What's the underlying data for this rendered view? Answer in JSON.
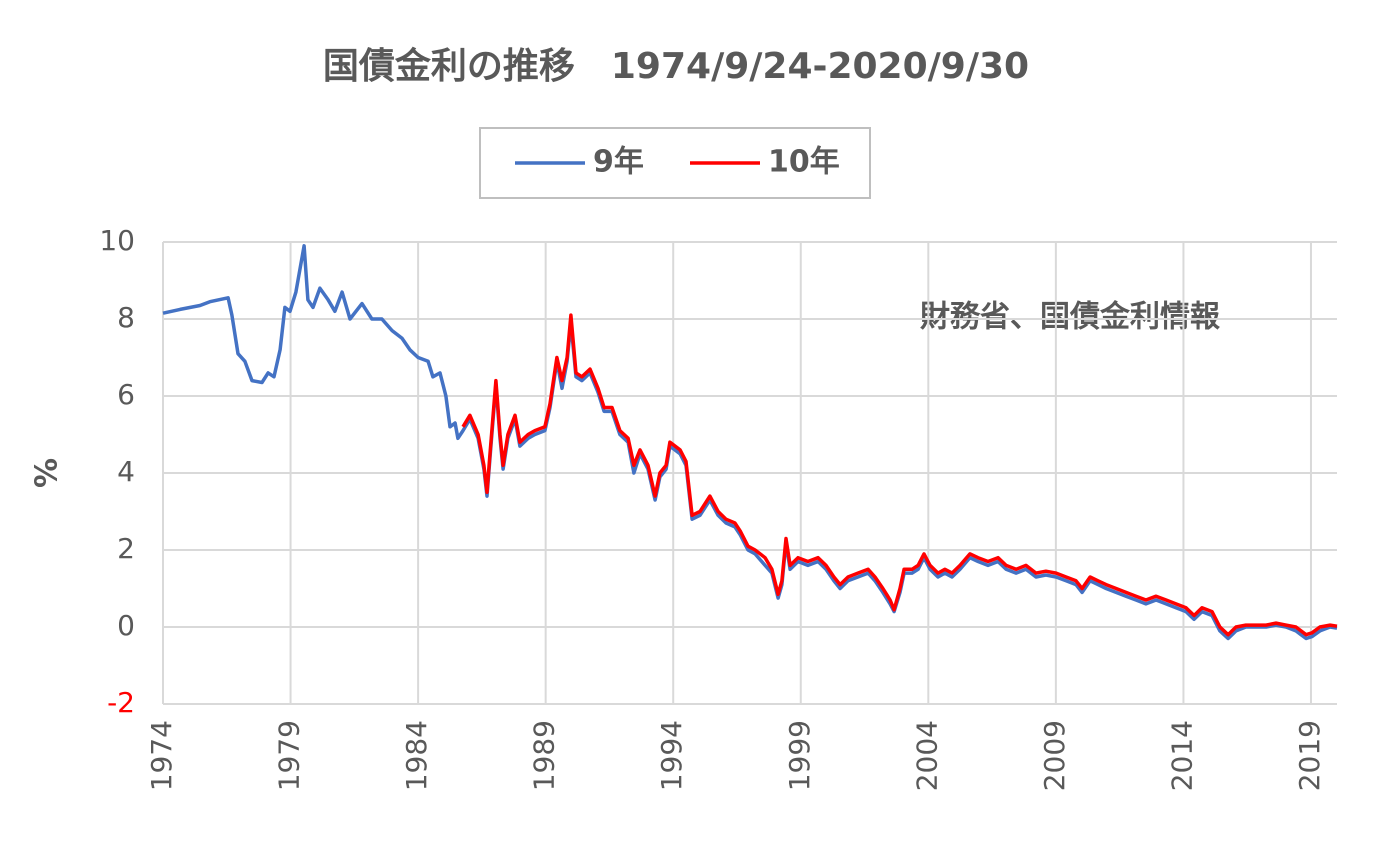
{
  "chart_data": {
    "type": "line",
    "title": "国債金利の推移　1974/9/24-2020/9/30",
    "ylabel": "%",
    "annotation": "財務省、国債金利情報",
    "xlim": [
      1974.73,
      2020.75
    ],
    "xticks": [
      {
        "value": 1974.73,
        "label": "1974"
      },
      {
        "value": 1979.73,
        "label": "1979"
      },
      {
        "value": 1984.73,
        "label": "1984"
      },
      {
        "value": 1989.73,
        "label": "1989"
      },
      {
        "value": 1994.73,
        "label": "1994"
      },
      {
        "value": 1999.73,
        "label": "1999"
      },
      {
        "value": 2004.73,
        "label": "2004"
      },
      {
        "value": 2009.73,
        "label": "2009"
      },
      {
        "value": 2014.73,
        "label": "2014"
      },
      {
        "value": 2019.73,
        "label": "2019"
      }
    ],
    "ylim": [
      -2,
      10
    ],
    "yticks": [
      -2,
      0,
      2,
      4,
      6,
      8,
      10
    ],
    "negative_tick_color": "#ff0000",
    "grid": true,
    "legend": "top",
    "x": [
      1974.73,
      1975.4,
      1976.18,
      1976.57,
      1977.28,
      1977.43,
      1977.67,
      1977.94,
      1978.22,
      1978.61,
      1978.85,
      1979.08,
      1979.32,
      1979.51,
      1979.71,
      1979.94,
      1980.26,
      1980.41,
      1980.61,
      1980.88,
      1981.2,
      1981.47,
      1981.75,
      1982.06,
      1982.53,
      1982.92,
      1983.31,
      1983.71,
      1984.1,
      1984.41,
      1984.73,
      1985.12,
      1985.31,
      1985.59,
      1985.82,
      1985.98,
      1986.18,
      1986.29,
      1986.49,
      1986.76,
      1987.08,
      1987.31,
      1987.43,
      1987.55,
      1987.78,
      1987.94,
      1988.06,
      1988.25,
      1988.53,
      1988.72,
      1989.04,
      1989.31,
      1989.7,
      1989.9,
      1990.17,
      1990.37,
      1990.57,
      1990.72,
      1990.92,
      1991.15,
      1991.47,
      1991.78,
      1992.02,
      1992.33,
      1992.64,
      1992.96,
      1993.19,
      1993.43,
      1993.74,
      1994.02,
      1994.21,
      1994.45,
      1994.6,
      1995.0,
      1995.23,
      1995.47,
      1995.78,
      1996.17,
      1996.49,
      1996.8,
      1997.15,
      1997.35,
      1997.66,
      1997.94,
      1998.33,
      1998.6,
      1998.84,
      1998.99,
      1999.15,
      1999.31,
      1999.62,
      2000.01,
      2000.41,
      2000.72,
      2001.03,
      2001.27,
      2001.58,
      2001.97,
      2002.37,
      2002.64,
      2002.95,
      2003.23,
      2003.39,
      2003.62,
      2003.78,
      2004.09,
      2004.33,
      2004.56,
      2004.8,
      2005.11,
      2005.38,
      2005.66,
      2005.97,
      2006.36,
      2006.68,
      2007.07,
      2007.46,
      2007.78,
      2008.17,
      2008.56,
      2008.95,
      2009.34,
      2009.74,
      2010.13,
      2010.52,
      2010.76,
      2011.07,
      2011.38,
      2011.7,
      2012.09,
      2012.48,
      2012.87,
      2013.26,
      2013.66,
      2014.05,
      2014.44,
      2014.83,
      2015.15,
      2015.46,
      2015.85,
      2016.16,
      2016.48,
      2016.79,
      2017.18,
      2017.58,
      2017.97,
      2018.36,
      2018.75,
      2019.14,
      2019.54,
      2019.77,
      2020.08,
      2020.48,
      2020.75
    ],
    "series": [
      {
        "name": "9年",
        "color": "#4472c4",
        "values": [
          8.15,
          8.25,
          8.35,
          8.45,
          8.55,
          8.1,
          7.1,
          6.9,
          6.4,
          6.35,
          6.6,
          6.5,
          7.2,
          8.3,
          8.2,
          8.7,
          9.9,
          8.5,
          8.3,
          8.8,
          8.5,
          8.2,
          8.7,
          8.0,
          8.4,
          8.0,
          8.0,
          7.7,
          7.5,
          7.2,
          7.0,
          6.9,
          6.5,
          6.6,
          6.0,
          5.2,
          5.3,
          4.9,
          5.1,
          5.4,
          4.9,
          4.1,
          3.4,
          4.4,
          6.3,
          4.9,
          4.1,
          4.9,
          5.4,
          4.7,
          4.9,
          5.0,
          5.1,
          5.7,
          6.9,
          6.2,
          6.9,
          7.9,
          6.5,
          6.4,
          6.6,
          6.1,
          5.6,
          5.6,
          5.0,
          4.8,
          4.0,
          4.5,
          4.1,
          3.3,
          3.9,
          4.1,
          4.7,
          4.5,
          4.2,
          2.8,
          2.9,
          3.3,
          2.9,
          2.7,
          2.6,
          2.4,
          2.0,
          1.9,
          1.6,
          1.4,
          0.75,
          1.1,
          2.2,
          1.5,
          1.7,
          1.6,
          1.7,
          1.5,
          1.2,
          1.0,
          1.2,
          1.3,
          1.4,
          1.2,
          0.9,
          0.6,
          0.4,
          0.9,
          1.4,
          1.4,
          1.5,
          1.8,
          1.5,
          1.3,
          1.4,
          1.3,
          1.5,
          1.8,
          1.7,
          1.6,
          1.7,
          1.5,
          1.4,
          1.5,
          1.3,
          1.35,
          1.3,
          1.2,
          1.1,
          0.9,
          1.2,
          1.1,
          1.0,
          0.9,
          0.8,
          0.7,
          0.6,
          0.7,
          0.6,
          0.5,
          0.4,
          0.2,
          0.4,
          0.3,
          -0.1,
          -0.3,
          -0.1,
          0.0,
          0.0,
          0.0,
          0.05,
          0.0,
          -0.1,
          -0.3,
          -0.25,
          -0.1,
          0.0,
          -0.03
        ]
      },
      {
        "name": "10年",
        "color": "#ff0000",
        "values": [
          null,
          null,
          null,
          null,
          null,
          null,
          null,
          null,
          null,
          null,
          null,
          null,
          null,
          null,
          null,
          null,
          null,
          null,
          null,
          null,
          null,
          null,
          null,
          null,
          null,
          null,
          null,
          null,
          null,
          null,
          null,
          null,
          null,
          null,
          null,
          null,
          null,
          null,
          5.2,
          5.5,
          5.0,
          4.2,
          3.5,
          4.5,
          6.4,
          5.0,
          4.2,
          5.0,
          5.5,
          4.8,
          5.0,
          5.1,
          5.2,
          5.8,
          7.0,
          6.4,
          7.0,
          8.1,
          6.6,
          6.5,
          6.7,
          6.2,
          5.7,
          5.7,
          5.1,
          4.9,
          4.2,
          4.6,
          4.2,
          3.4,
          4.0,
          4.2,
          4.8,
          4.6,
          4.3,
          2.9,
          3.0,
          3.4,
          3.0,
          2.8,
          2.7,
          2.5,
          2.1,
          2.0,
          1.8,
          1.5,
          0.85,
          1.2,
          2.3,
          1.6,
          1.8,
          1.7,
          1.8,
          1.6,
          1.3,
          1.1,
          1.3,
          1.4,
          1.5,
          1.3,
          1.0,
          0.7,
          0.45,
          1.0,
          1.5,
          1.5,
          1.6,
          1.9,
          1.6,
          1.4,
          1.5,
          1.4,
          1.6,
          1.9,
          1.8,
          1.7,
          1.8,
          1.6,
          1.5,
          1.6,
          1.4,
          1.45,
          1.4,
          1.3,
          1.2,
          1.0,
          1.3,
          1.2,
          1.1,
          1.0,
          0.9,
          0.8,
          0.7,
          0.8,
          0.7,
          0.6,
          0.5,
          0.3,
          0.5,
          0.4,
          0.0,
          -0.2,
          0.0,
          0.05,
          0.05,
          0.05,
          0.1,
          0.05,
          0.0,
          -0.2,
          -0.15,
          0.0,
          0.05,
          0.02
        ]
      }
    ]
  }
}
